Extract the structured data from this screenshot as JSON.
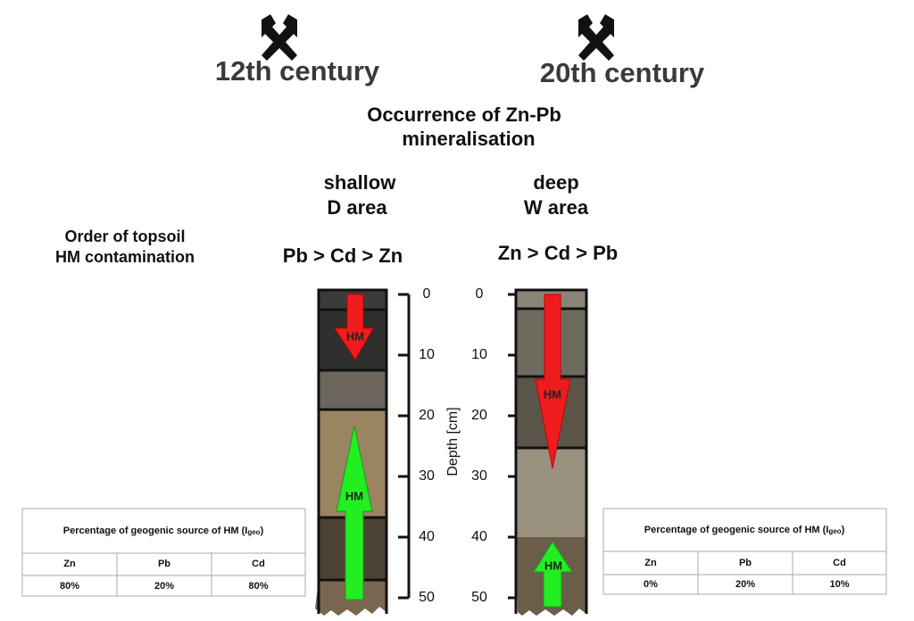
{
  "eras": [
    "12th century",
    "20th century"
  ],
  "occurrence": [
    "Occurrence  of Zn-Pb",
    "mineralisation"
  ],
  "row_label": [
    "Order of topsoil",
    "HM contamination"
  ],
  "profiles": [
    {
      "depth_class": "shallow",
      "area": "D area",
      "order": "Pb > Cd > Zn",
      "arrows": [
        "HM",
        "HM"
      ]
    },
    {
      "depth_class": "deep",
      "area": "W area",
      "order": "Zn > Cd > Pb",
      "arrows": [
        "HM",
        "HM"
      ]
    }
  ],
  "depth_axis": {
    "label": "Depth [cm]",
    "lim": [
      0,
      50
    ],
    "ticks": [
      0,
      10,
      20,
      30,
      40,
      50
    ]
  },
  "tables": [
    {
      "title": [
        "Percentage of geogenic source of HM (I",
        "geo",
        ")"
      ],
      "header": [
        "Zn",
        "Pb",
        "Cd"
      ],
      "values": [
        "80%",
        "20%",
        "80%"
      ]
    },
    {
      "title": [
        "Percentage of geogenic source of HM (I",
        "geo",
        ")"
      ],
      "header": [
        "Zn",
        "Pb",
        "Cd"
      ],
      "values": [
        "0%",
        "20%",
        "10%"
      ]
    }
  ]
}
